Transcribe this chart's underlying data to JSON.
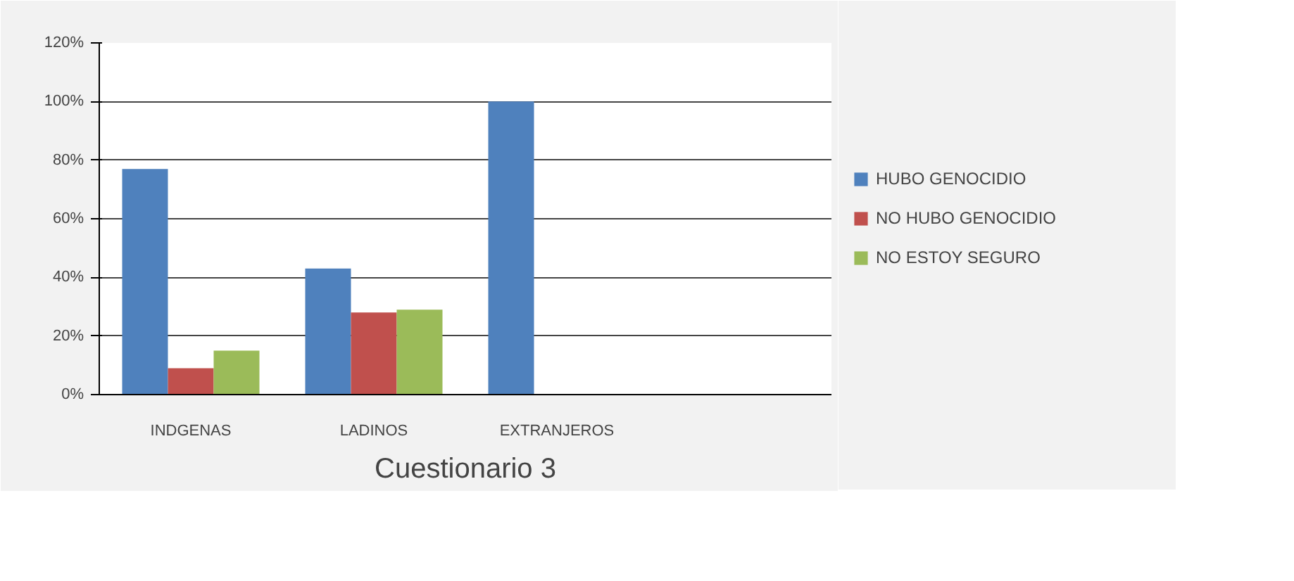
{
  "chart_data": {
    "type": "bar",
    "categories": [
      "INDGENAS",
      "LADINOS",
      "EXTRANJEROS",
      null
    ],
    "series": [
      {
        "name": "HUBO GENOCIDIO",
        "color": "#4f81bd",
        "values": [
          77,
          43,
          100,
          null
        ]
      },
      {
        "name": "NO HUBO GENOCIDIO",
        "color": "#c0504d",
        "values": [
          9,
          28,
          null,
          null
        ]
      },
      {
        "name": "NO ESTOY SEGURO",
        "color": "#9bbb59",
        "values": [
          15,
          29,
          null,
          null
        ]
      }
    ],
    "ylim": [
      0,
      120
    ],
    "yticks": [
      {
        "value": 0,
        "label": "0%"
      },
      {
        "value": 20,
        "label": "20%"
      },
      {
        "value": 40,
        "label": "40%"
      },
      {
        "value": 60,
        "label": "60%"
      },
      {
        "value": 80,
        "label": "80%"
      },
      {
        "value": 100,
        "label": "100%"
      },
      {
        "value": 120,
        "label": "120%"
      }
    ],
    "grid": "y",
    "legend": "right",
    "annotations": [
      "Cuestionario 3"
    ]
  }
}
